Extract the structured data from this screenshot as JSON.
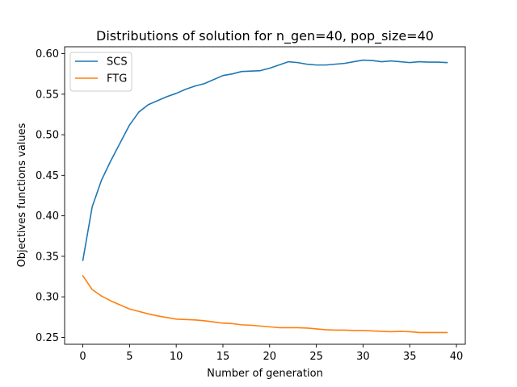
{
  "chart_data": {
    "type": "line",
    "title": "Distributions of solution for n_gen=40, pop_size=40",
    "xlabel": "Number of generation",
    "ylabel": "Objectives functions values",
    "xlim": [
      -1.95,
      40.95
    ],
    "ylim": [
      0.2415,
      0.6085
    ],
    "xticks": [
      0,
      5,
      10,
      15,
      20,
      25,
      30,
      35,
      40
    ],
    "xtick_labels": [
      "0",
      "5",
      "10",
      "15",
      "20",
      "25",
      "30",
      "35",
      "40"
    ],
    "yticks": [
      0.25,
      0.3,
      0.35,
      0.4,
      0.45,
      0.5,
      0.55,
      0.6
    ],
    "ytick_labels": [
      "0.25",
      "0.30",
      "0.35",
      "0.40",
      "0.45",
      "0.50",
      "0.55",
      "0.60"
    ],
    "grid": false,
    "legend": {
      "placement": "top-left"
    },
    "x": [
      0,
      1,
      2,
      3,
      4,
      5,
      6,
      7,
      8,
      9,
      10,
      11,
      12,
      13,
      14,
      15,
      16,
      17,
      18,
      19,
      20,
      21,
      22,
      23,
      24,
      25,
      26,
      27,
      28,
      29,
      30,
      31,
      32,
      33,
      34,
      35,
      36,
      37,
      38,
      39
    ],
    "series": [
      {
        "name": "SCS",
        "color": "#1f77b4",
        "values": [
          0.345,
          0.411,
          0.444,
          0.468,
          0.49,
          0.512,
          0.528,
          0.537,
          0.542,
          0.547,
          0.551,
          0.556,
          0.56,
          0.563,
          0.568,
          0.573,
          0.575,
          0.578,
          0.5785,
          0.579,
          0.582,
          0.586,
          0.59,
          0.589,
          0.587,
          0.586,
          0.586,
          0.587,
          0.588,
          0.59,
          0.592,
          0.5915,
          0.59,
          0.591,
          0.59,
          0.589,
          0.59,
          0.5895,
          0.5895,
          0.589
        ]
      },
      {
        "name": "FTG",
        "color": "#ff7f0e",
        "values": [
          0.326,
          0.309,
          0.301,
          0.295,
          0.29,
          0.285,
          0.282,
          0.279,
          0.2765,
          0.2745,
          0.2725,
          0.272,
          0.2715,
          0.2705,
          0.269,
          0.2675,
          0.267,
          0.2655,
          0.265,
          0.264,
          0.263,
          0.262,
          0.262,
          0.262,
          0.2615,
          0.2605,
          0.2595,
          0.259,
          0.259,
          0.2585,
          0.2585,
          0.258,
          0.2575,
          0.257,
          0.2575,
          0.257,
          0.256,
          0.256,
          0.256,
          0.256
        ]
      }
    ]
  }
}
